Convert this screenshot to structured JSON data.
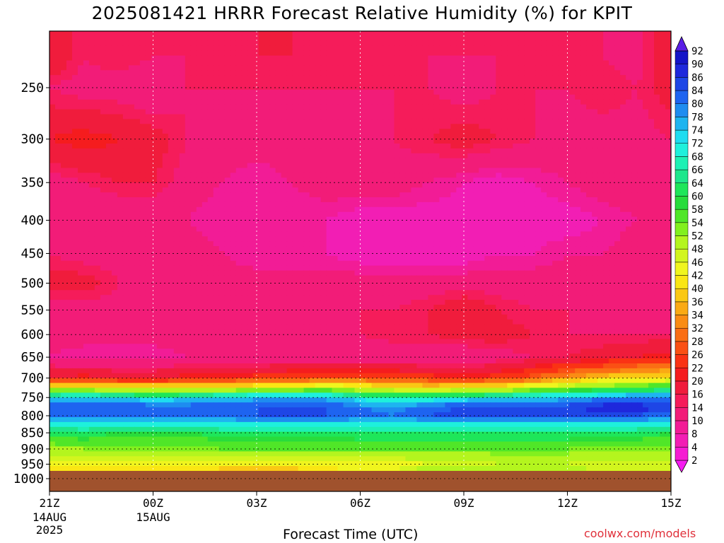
{
  "chart_data": {
    "type": "heatmap",
    "title": "2025081421 HRRR Forecast Relative Humidity (%) for KPIT",
    "xlabel": "Forecast Time (UTC)",
    "ylabel": "",
    "credit": "coolwx.com/models",
    "x_ticks": [
      {
        "value": 0,
        "label": "21Z",
        "sub1": "14AUG",
        "sub2": "2025"
      },
      {
        "value": 3,
        "label": "00Z",
        "sub1": "15AUG",
        "sub2": ""
      },
      {
        "value": 6,
        "label": "03Z",
        "sub1": "",
        "sub2": ""
      },
      {
        "value": 9,
        "label": "06Z",
        "sub1": "",
        "sub2": ""
      },
      {
        "value": 12,
        "label": "09Z",
        "sub1": "",
        "sub2": ""
      },
      {
        "value": 15,
        "label": "12Z",
        "sub1": "",
        "sub2": ""
      },
      {
        "value": 18,
        "label": "15Z",
        "sub1": "",
        "sub2": ""
      }
    ],
    "xlim": [
      0,
      18
    ],
    "y_ticks": [
      250,
      300,
      350,
      400,
      450,
      500,
      550,
      600,
      650,
      700,
      750,
      800,
      850,
      900,
      950,
      1000
    ],
    "ylim_hpa": [
      200,
      1050
    ],
    "y_scale": "log",
    "grid": true,
    "colorbar_levels": [
      2,
      4,
      8,
      10,
      14,
      16,
      20,
      22,
      26,
      28,
      32,
      34,
      36,
      40,
      42,
      46,
      48,
      52,
      54,
      58,
      60,
      64,
      66,
      68,
      72,
      74,
      78,
      80,
      84,
      86,
      90,
      92
    ],
    "colorbar_colors": [
      "#f51cf0",
      "#f51cd2",
      "#f21eb4",
      "#f21c96",
      "#f21c78",
      "#f51c5a",
      "#f01c3c",
      "#f51c1e",
      "#fa3214",
      "#fa5014",
      "#fa6e14",
      "#fa8c14",
      "#faaa14",
      "#fac814",
      "#fae614",
      "#f0f51e",
      "#d2f51e",
      "#b4f51e",
      "#82f01e",
      "#50e628",
      "#28dc3c",
      "#1ee65a",
      "#1ee68c",
      "#1ef0b4",
      "#1ef0dc",
      "#1edcf0",
      "#1eb4f0",
      "#1e8cf0",
      "#1e64f0",
      "#1e46e6",
      "#1e28dc",
      "#1414c8",
      "#5a1ee6"
    ],
    "contour_levels_used": [
      2,
      4,
      8,
      10,
      14,
      16,
      20,
      22,
      26,
      28,
      32,
      34,
      36,
      40,
      42,
      46,
      48,
      52,
      54,
      58,
      60,
      64,
      66,
      68,
      72,
      74,
      78,
      80,
      84,
      86,
      90,
      92
    ],
    "series": [
      {
        "time_hours": [
          0,
          1,
          2,
          3,
          4,
          5,
          6,
          7,
          8,
          9,
          10,
          11,
          12,
          13,
          14,
          15,
          16,
          17,
          18
        ],
        "levels_hpa": [
          225,
          250,
          300,
          350,
          400,
          450,
          500,
          550,
          600,
          650,
          700,
          725,
          750,
          775,
          800,
          825,
          850,
          900,
          950,
          975
        ],
        "rh_percent": [
          [
            20,
            14,
            16,
            14,
            14,
            14,
            16,
            16,
            14,
            14,
            14,
            14,
            14,
            14,
            14,
            14,
            14,
            12,
            20
          ],
          [
            14,
            12,
            12,
            10,
            14,
            14,
            14,
            14,
            14,
            14,
            14,
            14,
            12,
            14,
            14,
            14,
            16,
            14,
            18
          ],
          [
            20,
            22,
            20,
            18,
            14,
            12,
            12,
            12,
            12,
            12,
            14,
            16,
            18,
            16,
            14,
            12,
            12,
            12,
            14
          ],
          [
            12,
            14,
            16,
            16,
            12,
            10,
            8,
            10,
            12,
            12,
            12,
            10,
            8,
            6,
            8,
            10,
            12,
            12,
            12
          ],
          [
            10,
            10,
            10,
            10,
            10,
            8,
            8,
            8,
            8,
            6,
            6,
            6,
            6,
            6,
            6,
            6,
            8,
            10,
            12
          ],
          [
            14,
            12,
            12,
            12,
            12,
            10,
            8,
            8,
            8,
            6,
            6,
            6,
            6,
            8,
            8,
            10,
            10,
            12,
            12
          ],
          [
            18,
            18,
            14,
            12,
            12,
            12,
            12,
            12,
            12,
            12,
            12,
            12,
            12,
            12,
            12,
            12,
            12,
            12,
            14
          ],
          [
            12,
            12,
            12,
            12,
            12,
            12,
            12,
            12,
            12,
            14,
            14,
            16,
            20,
            16,
            14,
            14,
            12,
            12,
            12
          ],
          [
            12,
            12,
            12,
            12,
            12,
            12,
            12,
            12,
            12,
            14,
            16,
            16,
            18,
            18,
            16,
            14,
            14,
            14,
            14
          ],
          [
            10,
            8,
            8,
            8,
            10,
            10,
            10,
            10,
            10,
            10,
            10,
            10,
            10,
            12,
            14,
            16,
            18,
            20,
            22
          ],
          [
            20,
            22,
            20,
            20,
            22,
            22,
            24,
            26,
            28,
            28,
            26,
            24,
            22,
            24,
            28,
            34,
            38,
            40,
            42
          ],
          [
            46,
            46,
            44,
            42,
            42,
            44,
            46,
            46,
            48,
            46,
            42,
            40,
            42,
            44,
            48,
            52,
            56,
            58,
            60
          ],
          [
            72,
            74,
            72,
            70,
            72,
            74,
            76,
            78,
            76,
            70,
            66,
            68,
            70,
            72,
            74,
            76,
            78,
            80,
            80
          ],
          [
            82,
            84,
            84,
            82,
            82,
            84,
            84,
            84,
            84,
            80,
            78,
            82,
            84,
            84,
            84,
            86,
            88,
            88,
            86
          ],
          [
            80,
            82,
            82,
            82,
            82,
            82,
            84,
            84,
            84,
            82,
            80,
            84,
            86,
            84,
            84,
            84,
            84,
            84,
            82
          ],
          [
            70,
            72,
            72,
            72,
            72,
            72,
            72,
            72,
            72,
            72,
            72,
            72,
            72,
            72,
            72,
            72,
            72,
            72,
            70
          ],
          [
            62,
            62,
            60,
            60,
            60,
            62,
            62,
            62,
            62,
            64,
            64,
            64,
            64,
            64,
            64,
            64,
            62,
            62,
            60
          ],
          [
            50,
            52,
            52,
            52,
            52,
            54,
            54,
            54,
            54,
            54,
            54,
            54,
            54,
            54,
            54,
            54,
            52,
            52,
            52
          ],
          [
            44,
            44,
            44,
            44,
            44,
            42,
            42,
            42,
            42,
            44,
            44,
            46,
            46,
            48,
            48,
            48,
            46,
            46,
            46
          ],
          [
            40,
            40,
            40,
            40,
            40,
            38,
            38,
            38,
            40,
            44,
            46,
            52,
            54,
            54,
            52,
            50,
            48,
            46,
            46
          ]
        ]
      }
    ]
  }
}
